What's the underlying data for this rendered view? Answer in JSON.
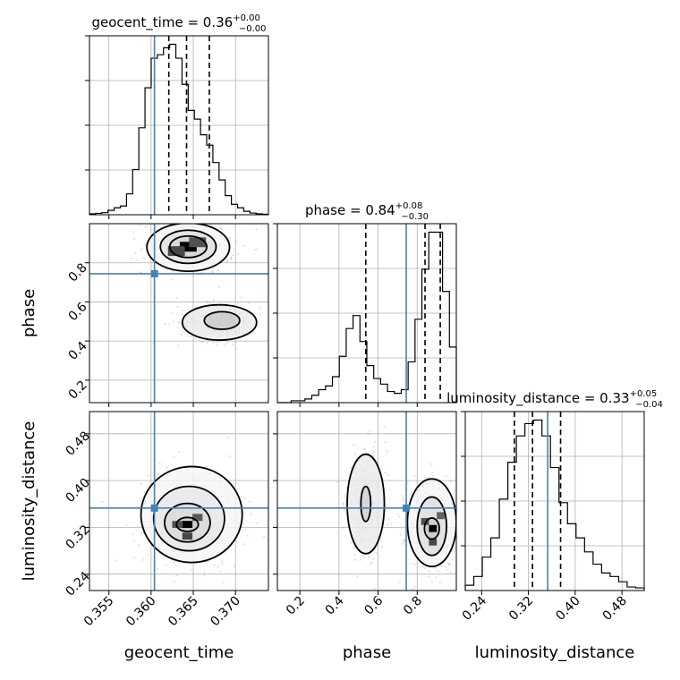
{
  "chart_data": {
    "type": "corner",
    "colors": {
      "truth": "#4682b4",
      "hist": "#000000",
      "grid": "#b0b0b0",
      "samples": "#999999"
    },
    "parameters": [
      {
        "name": "geocent_time",
        "xlabel": "geocent_time",
        "range": [
          0.3527,
          0.3739
        ],
        "ticks": [
          0.355,
          0.36,
          0.365,
          0.37
        ],
        "tick_labels": [
          "0.355",
          "0.360",
          "0.365",
          "0.370"
        ],
        "truth": 0.3604,
        "quantiles": [
          0.3621,
          0.3642,
          0.3669
        ],
        "title": {
          "main": "geocent_time = 0.36",
          "sup": "+0.00",
          "sub": "−0.00"
        },
        "hist": [
          0.005,
          0.008,
          0.012,
          0.025,
          0.04,
          0.05,
          0.12,
          0.26,
          0.5,
          0.73,
          0.9,
          0.92,
          0.96,
          0.98,
          0.9,
          0.75,
          0.6,
          0.55,
          0.46,
          0.4,
          0.3,
          0.2,
          0.11,
          0.06,
          0.04,
          0.02,
          0.01,
          0.005,
          0.003
        ]
      },
      {
        "name": "phase",
        "xlabel": "phase",
        "ylabel": "phase",
        "range": [
          0.085,
          1.0
        ],
        "ticks": [
          0.2,
          0.4,
          0.6,
          0.8
        ],
        "tick_labels": [
          "0.2",
          "0.4",
          "0.6",
          "0.8"
        ],
        "truth": 0.744,
        "quantiles": [
          0.537,
          0.84,
          0.918
        ],
        "title": {
          "main": "phase = 0.84",
          "sup": "+0.08",
          "sub": "−0.30"
        },
        "hist": [
          0.0,
          0.0,
          0.01,
          0.01,
          0.02,
          0.04,
          0.07,
          0.09,
          0.14,
          0.25,
          0.4,
          0.47,
          0.33,
          0.2,
          0.13,
          0.1,
          0.06,
          0.05,
          0.07,
          0.22,
          0.45,
          0.72,
          0.92,
          0.92,
          0.6,
          0.3
        ]
      },
      {
        "name": "luminosity_distance",
        "xlabel": "luminosity_distance",
        "ylabel": "luminosity_distance",
        "range": [
          0.212,
          0.518
        ],
        "ticks": [
          0.24,
          0.32,
          0.4,
          0.48
        ],
        "tick_labels": [
          "0.24",
          "0.32",
          "0.40",
          "0.48"
        ],
        "truth": 0.353,
        "quantiles": [
          0.296,
          0.327,
          0.375
        ],
        "title": {
          "main": "luminosity_distance = 0.33",
          "sup": "+0.05",
          "sub": "−0.04"
        },
        "hist": [
          0.03,
          0.08,
          0.19,
          0.3,
          0.52,
          0.73,
          0.88,
          0.95,
          0.97,
          0.88,
          0.7,
          0.5,
          0.38,
          0.3,
          0.22,
          0.15,
          0.1,
          0.08,
          0.05,
          0.02,
          0.015
        ]
      }
    ],
    "contours": [
      {
        "panel": "phase_vs_geocent_time",
        "x": "geocent_time",
        "y": "phase",
        "levels": [
          {
            "cx": 0.3644,
            "cy": 0.882,
            "rx": 0.0022,
            "ry": 0.055
          },
          {
            "cx": 0.3644,
            "cy": 0.882,
            "rx": 0.0033,
            "ry": 0.085
          },
          {
            "cx": 0.3644,
            "cy": 0.88,
            "rx": 0.0049,
            "ry": 0.123
          },
          {
            "cx": 0.3684,
            "cy": 0.505,
            "rx": 0.0021,
            "ry": 0.045
          },
          {
            "cx": 0.3681,
            "cy": 0.495,
            "rx": 0.0044,
            "ry": 0.09
          }
        ],
        "peaks": [
          {
            "x": 0.3644,
            "y": 0.882,
            "w": 0.002,
            "h": 0.05,
            "v": 1.0
          },
          {
            "x": 0.363,
            "y": 0.86,
            "w": 0.002,
            "h": 0.05,
            "v": 0.6
          },
          {
            "x": 0.3655,
            "y": 0.905,
            "w": 0.002,
            "h": 0.05,
            "v": 0.55
          }
        ]
      },
      {
        "panel": "luminosity_distance_vs_geocent_time",
        "x": "geocent_time",
        "y": "luminosity_distance",
        "levels": [
          {
            "cx": 0.3643,
            "cy": 0.325,
            "rx": 0.0013,
            "ry": 0.012
          },
          {
            "cx": 0.3643,
            "cy": 0.328,
            "rx": 0.0027,
            "ry": 0.033
          },
          {
            "cx": 0.3645,
            "cy": 0.335,
            "rx": 0.0042,
            "ry": 0.055
          },
          {
            "cx": 0.3648,
            "cy": 0.342,
            "rx": 0.006,
            "ry": 0.082
          }
        ],
        "peaks": [
          {
            "x": 0.3643,
            "y": 0.325,
            "w": 0.0012,
            "h": 0.012,
            "v": 1.0
          },
          {
            "x": 0.3643,
            "y": 0.305,
            "w": 0.0012,
            "h": 0.012,
            "v": 0.6
          },
          {
            "x": 0.3631,
            "y": 0.325,
            "w": 0.0012,
            "h": 0.012,
            "v": 0.55
          },
          {
            "x": 0.3655,
            "y": 0.337,
            "w": 0.0012,
            "h": 0.012,
            "v": 0.5
          }
        ]
      },
      {
        "panel": "luminosity_distance_vs_phase",
        "x": "phase",
        "y": "luminosity_distance",
        "levels": [
          {
            "cx": 0.537,
            "cy": 0.36,
            "rx": 0.025,
            "ry": 0.03
          },
          {
            "cx": 0.537,
            "cy": 0.36,
            "rx": 0.095,
            "ry": 0.085
          },
          {
            "cx": 0.875,
            "cy": 0.318,
            "rx": 0.038,
            "ry": 0.018
          },
          {
            "cx": 0.875,
            "cy": 0.322,
            "rx": 0.075,
            "ry": 0.05
          },
          {
            "cx": 0.875,
            "cy": 0.328,
            "rx": 0.125,
            "ry": 0.075
          }
        ],
        "peaks": [
          {
            "x": 0.88,
            "y": 0.318,
            "w": 0.04,
            "h": 0.012,
            "v": 1.0
          },
          {
            "x": 0.88,
            "y": 0.295,
            "w": 0.04,
            "h": 0.012,
            "v": 0.6
          },
          {
            "x": 0.84,
            "y": 0.33,
            "w": 0.04,
            "h": 0.012,
            "v": 0.55
          },
          {
            "x": 0.92,
            "y": 0.34,
            "w": 0.04,
            "h": 0.012,
            "v": 0.45
          }
        ]
      }
    ]
  }
}
